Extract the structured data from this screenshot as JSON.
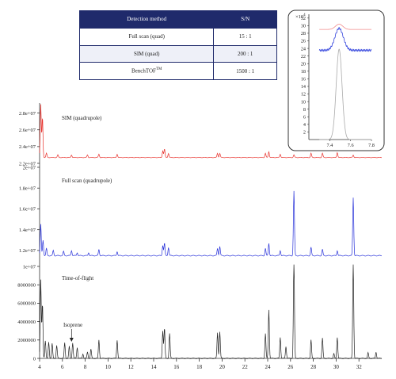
{
  "table": {
    "headers": [
      "Detection method",
      "S/N"
    ],
    "rows": [
      {
        "method": "Full scan (quad)",
        "sn": "15 : 1"
      },
      {
        "method": "SIM (quad)",
        "sn": "200 : 1"
      },
      {
        "method": "BenchTOF",
        "method_sup": "TM",
        "sn": "1500 : 1"
      }
    ]
  },
  "colors": {
    "sim": "#e8302b",
    "fullscan": "#2630d9",
    "tof": "#222222",
    "inset_grey": "#aaaaaa",
    "table_header": "#1f2a6b"
  },
  "chart_data": [
    {
      "type": "line",
      "panel": "main",
      "x_ticks": [
        4,
        6,
        8,
        10,
        12,
        14,
        16,
        18,
        20,
        22,
        24,
        26,
        28,
        30,
        32
      ],
      "xlim": [
        4,
        34
      ],
      "series": [
        {
          "name": "SIM (quadrupole)",
          "color": "#e8302b",
          "ylim": [
            22000000,
            29000000
          ],
          "y_ticks": [
            22000000,
            24000000,
            26000000,
            28000000
          ],
          "y_tick_labels": [
            "2.2e+07",
            "2.4e+07",
            "2.6e+07",
            "2.8e+07"
          ],
          "baseline": 22700000,
          "peaks": [
            [
              4.1,
              29000000
            ],
            [
              4.25,
              27500000
            ],
            [
              4.6,
              23200000
            ],
            [
              5.6,
              23000000
            ],
            [
              6.8,
              23000000
            ],
            [
              8.2,
              23000000
            ],
            [
              9.2,
              23100000
            ],
            [
              10.8,
              23100000
            ],
            [
              14.8,
              23500000
            ],
            [
              14.95,
              23700000
            ],
            [
              15.3,
              23200000
            ],
            [
              19.6,
              23200000
            ],
            [
              19.8,
              23200000
            ],
            [
              23.8,
              23200000
            ],
            [
              24.1,
              23400000
            ],
            [
              25.1,
              23100000
            ],
            [
              26.3,
              23000000
            ],
            [
              27.8,
              23200000
            ],
            [
              28.8,
              23200000
            ],
            [
              30.1,
              23300000
            ],
            [
              31.5,
              23000000
            ]
          ]
        },
        {
          "name": "Full scan (quadrupole)",
          "color": "#2630d9",
          "ylim": [
            11000000,
            20000000
          ],
          "y_ticks": [
            12000000,
            14000000,
            16000000,
            18000000,
            20000000
          ],
          "y_tick_labels": [
            "1.2e+07",
            "1.4e+07",
            "1.6e+07",
            "1.8e+07",
            "2e+07"
          ],
          "baseline": 11500000,
          "peaks": [
            [
              4.1,
              14500000
            ],
            [
              4.3,
              13000000
            ],
            [
              4.6,
              12200000
            ],
            [
              5.2,
              12000000
            ],
            [
              6.1,
              11900000
            ],
            [
              6.8,
              12000000
            ],
            [
              7.3,
              11800000
            ],
            [
              8.3,
              11800000
            ],
            [
              9.2,
              12100000
            ],
            [
              10.8,
              11900000
            ],
            [
              14.8,
              12500000
            ],
            [
              14.95,
              12700000
            ],
            [
              15.3,
              12300000
            ],
            [
              19.6,
              12200000
            ],
            [
              19.8,
              12400000
            ],
            [
              23.8,
              12200000
            ],
            [
              24.1,
              12700000
            ],
            [
              25.1,
              12000000
            ],
            [
              26.3,
              17700000
            ],
            [
              27.8,
              12300000
            ],
            [
              28.8,
              12100000
            ],
            [
              30.1,
              12000000
            ],
            [
              31.5,
              17100000
            ]
          ]
        },
        {
          "name": "Time-of-flight",
          "color": "#222222",
          "ylim": [
            0,
            10000000
          ],
          "y_ticks": [
            0,
            2000000,
            4000000,
            6000000,
            8000000,
            10000000
          ],
          "y_tick_labels": [
            "0",
            "2000000",
            "4000000",
            "6000000",
            "8000000",
            "1e+07"
          ],
          "baseline": 0,
          "peaks": [
            [
              4.1,
              8500000
            ],
            [
              4.25,
              6000000
            ],
            [
              4.5,
              1900000
            ],
            [
              4.8,
              1800000
            ],
            [
              5.1,
              1600000
            ],
            [
              5.5,
              1400000
            ],
            [
              6.2,
              1700000
            ],
            [
              6.6,
              1300000
            ],
            [
              6.9,
              1700000
            ],
            [
              7.3,
              1200000
            ],
            [
              7.8,
              500000
            ],
            [
              8.2,
              700000
            ],
            [
              8.5,
              1000000
            ],
            [
              9.2,
              2000000
            ],
            [
              10.8,
              2000000
            ],
            [
              14.8,
              3000000
            ],
            [
              14.95,
              3300000
            ],
            [
              15.4,
              2700000
            ],
            [
              19.6,
              2800000
            ],
            [
              19.8,
              2900000
            ],
            [
              23.8,
              2700000
            ],
            [
              24.1,
              5300000
            ],
            [
              25.1,
              2300000
            ],
            [
              25.6,
              1300000
            ],
            [
              26.3,
              11000000
            ],
            [
              27.8,
              2000000
            ],
            [
              28.8,
              2200000
            ],
            [
              29.8,
              500000
            ],
            [
              30.1,
              2300000
            ],
            [
              31.5,
              10500000
            ],
            [
              32.8,
              600000
            ],
            [
              33.5,
              700000
            ]
          ]
        }
      ],
      "annotations": [
        {
          "text": "Isoprene",
          "x": 6.8,
          "series": "Time-of-flight"
        }
      ]
    },
    {
      "type": "line",
      "panel": "inset",
      "exponent_label": "×10",
      "exponent_sup": "4",
      "xlim": [
        7.2,
        7.8
      ],
      "x_ticks": [
        7.4,
        7.6,
        7.8
      ],
      "x_tick_labels": [
        "7.4",
        "7.6",
        "7.8"
      ],
      "ylim": [
        0,
        33
      ],
      "y_ticks": [
        2,
        4,
        6,
        8,
        10,
        12,
        14,
        16,
        18,
        20,
        22,
        24,
        26,
        28,
        30,
        32
      ],
      "y_tick_labels": [
        "2",
        "4",
        "6",
        "8",
        "10",
        "12",
        "14",
        "16",
        "18",
        "20",
        "22",
        "24",
        "26",
        "28",
        "30",
        "32"
      ],
      "series": [
        {
          "color": "#f28a8a",
          "baseline": 29,
          "peak_center": 7.49,
          "peak_height": 1.4,
          "peak_width": 0.035
        },
        {
          "color": "#3344dd",
          "baseline": 23.5,
          "peak_center": 7.49,
          "peak_height": 5.8,
          "peak_width": 0.04
        },
        {
          "color": "#aaaaaa",
          "baseline": 0,
          "peak_center": 7.49,
          "peak_height": 23.8,
          "peak_width": 0.028
        }
      ]
    }
  ]
}
